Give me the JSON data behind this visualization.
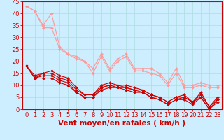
{
  "xlabel": "Vent moyen/en rafales ( km/h )",
  "background_color": "#cceeff",
  "grid_color": "#aadddd",
  "xlim": [
    -0.5,
    23.5
  ],
  "ylim": [
    0,
    45
  ],
  "yticks": [
    0,
    5,
    10,
    15,
    20,
    25,
    30,
    35,
    40,
    45
  ],
  "xticks": [
    0,
    1,
    2,
    3,
    4,
    5,
    6,
    7,
    8,
    9,
    10,
    11,
    12,
    13,
    14,
    15,
    16,
    17,
    18,
    19,
    20,
    21,
    22,
    23
  ],
  "lines_light": [
    {
      "x": [
        0,
        1,
        2,
        3,
        4,
        5,
        6,
        7,
        8,
        9,
        10,
        11,
        12,
        13,
        14,
        15,
        16,
        17,
        18,
        19,
        20,
        21,
        22,
        23
      ],
      "y": [
        43,
        41,
        35,
        40,
        26,
        23,
        22,
        20,
        17,
        23,
        17,
        21,
        23,
        17,
        17,
        17,
        15,
        11,
        17,
        10,
        10,
        11,
        10,
        10
      ]
    },
    {
      "x": [
        0,
        1,
        2,
        3,
        4,
        5,
        6,
        7,
        8,
        9,
        10,
        11,
        12,
        13,
        14,
        15,
        16,
        17,
        18,
        19,
        20,
        21,
        22,
        23
      ],
      "y": [
        43,
        41,
        34,
        34,
        25,
        23,
        21,
        20,
        15,
        22,
        16,
        20,
        22,
        16,
        16,
        15,
        14,
        10,
        15,
        9,
        9,
        10,
        9,
        9
      ]
    }
  ],
  "lines_dark": [
    {
      "x": [
        0,
        1,
        2,
        3,
        4,
        5,
        6,
        7,
        8,
        9,
        10,
        11,
        12,
        13,
        14,
        15,
        16,
        17,
        18,
        19,
        20,
        21,
        22,
        23
      ],
      "y": [
        18,
        14,
        15,
        16,
        14,
        13,
        9,
        6,
        6,
        10,
        11,
        10,
        10,
        9,
        8,
        6,
        5,
        3,
        5,
        6,
        3,
        7,
        1,
        5
      ]
    },
    {
      "x": [
        0,
        1,
        2,
        3,
        4,
        5,
        6,
        7,
        8,
        9,
        10,
        11,
        12,
        13,
        14,
        15,
        16,
        17,
        18,
        19,
        20,
        21,
        22,
        23
      ],
      "y": [
        18,
        13,
        15,
        15,
        13,
        12,
        8,
        6,
        6,
        9,
        10,
        10,
        9,
        8,
        8,
        6,
        5,
        3,
        5,
        5,
        3,
        6,
        1,
        4
      ]
    },
    {
      "x": [
        0,
        1,
        2,
        3,
        4,
        5,
        6,
        7,
        8,
        9,
        10,
        11,
        12,
        13,
        14,
        15,
        16,
        17,
        18,
        19,
        20,
        21,
        22,
        23
      ],
      "y": [
        18,
        13,
        14,
        14,
        12,
        11,
        7,
        5,
        5,
        9,
        10,
        9,
        9,
        8,
        7,
        5,
        4,
        2,
        4,
        5,
        3,
        5,
        0,
        4
      ]
    },
    {
      "x": [
        0,
        1,
        2,
        3,
        4,
        5,
        6,
        7,
        8,
        9,
        10,
        11,
        12,
        13,
        14,
        15,
        16,
        17,
        18,
        19,
        20,
        21,
        22,
        23
      ],
      "y": [
        18,
        13,
        13,
        13,
        11,
        10,
        7,
        5,
        5,
        8,
        9,
        9,
        8,
        7,
        7,
        5,
        4,
        2,
        4,
        4,
        2,
        5,
        0,
        3
      ]
    }
  ],
  "light_color": "#ff9999",
  "dark_color": "#cc0000",
  "marker": "D",
  "markersize": 2.0,
  "linewidth": 0.8,
  "xlabel_fontsize": 7.5,
  "tick_fontsize": 6.0
}
